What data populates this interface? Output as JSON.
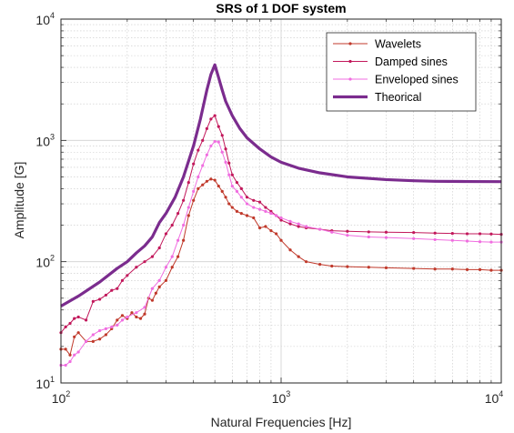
{
  "chart_data": {
    "type": "line",
    "title": "SRS of 1 DOF system",
    "xlabel": "Natural Frequencies [Hz]",
    "ylabel": "Amplitude [G]",
    "xscale": "log",
    "yscale": "log",
    "xlim": [
      100,
      10000
    ],
    "ylim": [
      10,
      10000
    ],
    "grid": "major and minor",
    "legend_position": "top-right",
    "x_ticks": [
      {
        "value": 100,
        "base": "10",
        "exp": "2"
      },
      {
        "value": 1000,
        "base": "10",
        "exp": "3"
      },
      {
        "value": 10000,
        "base": "10",
        "exp": "4"
      }
    ],
    "y_ticks": [
      {
        "value": 10,
        "base": "10",
        "exp": "1"
      },
      {
        "value": 100,
        "base": "10",
        "exp": "2"
      },
      {
        "value": 1000,
        "base": "10",
        "exp": "3"
      },
      {
        "value": 10000,
        "base": "10",
        "exp": "4"
      }
    ],
    "series": [
      {
        "name": "Wavelets",
        "color": "#C0392B",
        "marker": "dot",
        "x": [
          100,
          105,
          110,
          115,
          120,
          130,
          140,
          150,
          160,
          170,
          180,
          190,
          200,
          210,
          220,
          230,
          240,
          250,
          260,
          270,
          280,
          300,
          320,
          340,
          360,
          380,
          400,
          420,
          440,
          460,
          480,
          500,
          520,
          540,
          560,
          580,
          600,
          630,
          660,
          700,
          750,
          800,
          850,
          900,
          950,
          1000,
          1100,
          1200,
          1300,
          1500,
          1700,
          2000,
          2500,
          3000,
          4000,
          5000,
          6000,
          7000,
          8000,
          9000,
          10000
        ],
        "y": [
          19,
          19,
          17,
          24,
          26,
          22,
          22,
          23,
          25,
          28,
          33,
          36,
          34,
          38,
          35,
          34,
          37,
          50,
          48,
          55,
          62,
          70,
          90,
          110,
          150,
          240,
          320,
          400,
          430,
          460,
          480,
          470,
          420,
          380,
          340,
          300,
          280,
          260,
          250,
          240,
          230,
          190,
          195,
          180,
          170,
          150,
          125,
          110,
          100,
          95,
          92,
          91,
          90,
          89,
          88,
          87,
          87,
          86,
          86,
          85,
          85
        ]
      },
      {
        "name": "Damped sines",
        "color": "#C2185B",
        "marker": "dot",
        "x": [
          100,
          105,
          110,
          115,
          120,
          130,
          140,
          150,
          160,
          170,
          180,
          190,
          200,
          220,
          240,
          260,
          280,
          300,
          320,
          340,
          360,
          380,
          400,
          420,
          440,
          460,
          480,
          500,
          520,
          540,
          560,
          580,
          600,
          630,
          660,
          700,
          750,
          800,
          850,
          900,
          950,
          1000,
          1100,
          1200,
          1300,
          1500,
          1700,
          2000,
          2500,
          3000,
          4000,
          5000,
          6000,
          7000,
          8000,
          9000,
          10000
        ],
        "y": [
          26,
          29,
          31,
          34,
          35,
          33,
          47,
          49,
          53,
          58,
          60,
          70,
          77,
          90,
          100,
          110,
          130,
          170,
          200,
          250,
          320,
          450,
          640,
          830,
          1000,
          1250,
          1500,
          1600,
          1300,
          1100,
          850,
          650,
          520,
          450,
          400,
          340,
          320,
          310,
          280,
          260,
          240,
          220,
          205,
          195,
          190,
          185,
          180,
          178,
          176,
          175,
          174,
          172,
          171,
          170,
          170,
          169,
          168
        ]
      },
      {
        "name": "Enveloped sines",
        "color": "#F06EE0",
        "marker": "dot",
        "x": [
          100,
          105,
          110,
          115,
          120,
          130,
          140,
          150,
          160,
          170,
          180,
          190,
          200,
          220,
          240,
          260,
          280,
          300,
          320,
          340,
          360,
          380,
          400,
          420,
          440,
          460,
          480,
          500,
          520,
          540,
          560,
          580,
          600,
          630,
          660,
          700,
          750,
          800,
          850,
          900,
          950,
          1000,
          1100,
          1200,
          1300,
          1500,
          1700,
          2000,
          2500,
          3000,
          4000,
          5000,
          6000,
          7000,
          8000,
          9000,
          10000
        ],
        "y": [
          14,
          14,
          15,
          17,
          18,
          22,
          25,
          27,
          28,
          29,
          30,
          33,
          35,
          38,
          42,
          60,
          70,
          90,
          110,
          150,
          200,
          280,
          380,
          500,
          620,
          760,
          900,
          980,
          970,
          800,
          660,
          520,
          420,
          380,
          340,
          300,
          280,
          270,
          260,
          250,
          240,
          230,
          215,
          205,
          195,
          185,
          175,
          165,
          160,
          158,
          155,
          152,
          150,
          148,
          146,
          145,
          145
        ]
      },
      {
        "name": "Theorical",
        "color": "#7B2C8E",
        "marker": "none",
        "x": [
          100,
          120,
          150,
          180,
          200,
          220,
          240,
          260,
          280,
          300,
          330,
          360,
          400,
          430,
          460,
          480,
          500,
          520,
          540,
          560,
          600,
          650,
          700,
          800,
          900,
          1000,
          1200,
          1500,
          2000,
          3000,
          4000,
          5000,
          7000,
          10000
        ],
        "y": [
          43,
          52,
          68,
          88,
          100,
          118,
          135,
          160,
          210,
          250,
          340,
          500,
          900,
          1500,
          2600,
          3500,
          4200,
          3300,
          2600,
          2100,
          1600,
          1250,
          1050,
          850,
          730,
          660,
          590,
          540,
          500,
          475,
          465,
          460,
          458,
          457
        ]
      }
    ]
  }
}
